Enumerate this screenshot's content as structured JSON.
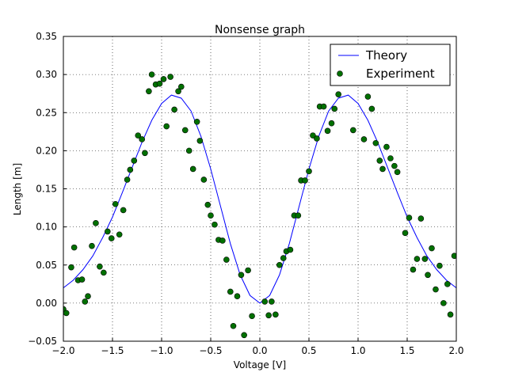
{
  "chart_data": {
    "type": "line_scatter",
    "title": "Nonsense graph",
    "x_label": "Voltage [V]",
    "y_label": "Length [m]",
    "xlim": [
      -2.0,
      2.0
    ],
    "ylim": [
      -0.05,
      0.35
    ],
    "xticks": [
      {
        "value": -2.0,
        "label": "−2.0"
      },
      {
        "value": -1.5,
        "label": "−1.5"
      },
      {
        "value": -1.0,
        "label": "−1.0"
      },
      {
        "value": -0.5,
        "label": "−0.5"
      },
      {
        "value": 0.0,
        "label": "0.0"
      },
      {
        "value": 0.5,
        "label": "0.5"
      },
      {
        "value": 1.0,
        "label": "1.0"
      },
      {
        "value": 1.5,
        "label": "1.5"
      },
      {
        "value": 2.0,
        "label": "2.0"
      }
    ],
    "yticks": [
      {
        "value": -0.05,
        "label": "−0.05"
      },
      {
        "value": 0.0,
        "label": "0.00"
      },
      {
        "value": 0.05,
        "label": "0.05"
      },
      {
        "value": 0.1,
        "label": "0.10"
      },
      {
        "value": 0.15,
        "label": "0.15"
      },
      {
        "value": 0.2,
        "label": "0.20"
      },
      {
        "value": 0.25,
        "label": "0.25"
      },
      {
        "value": 0.3,
        "label": "0.30"
      },
      {
        "value": 0.35,
        "label": "0.35"
      }
    ],
    "grid": true,
    "legend": "upper right",
    "series": [
      {
        "name": "Theory",
        "kind": "line",
        "color": "#0000ff",
        "x": [
          -2.0,
          -1.9,
          -1.8,
          -1.7,
          -1.6,
          -1.5,
          -1.4,
          -1.3,
          -1.2,
          -1.1,
          -1.0,
          -0.9,
          -0.8,
          -0.7,
          -0.6,
          -0.5,
          -0.4,
          -0.3,
          -0.2,
          -0.1,
          0.0,
          0.1,
          0.2,
          0.3,
          0.4,
          0.5,
          0.6,
          0.7,
          0.8,
          0.9,
          1.0,
          1.1,
          1.2,
          1.3,
          1.4,
          1.5,
          1.6,
          1.7,
          1.8,
          1.9,
          2.0
        ],
        "values": [
          0.02,
          0.03,
          0.044,
          0.062,
          0.086,
          0.113,
          0.145,
          0.178,
          0.211,
          0.24,
          0.262,
          0.273,
          0.269,
          0.252,
          0.219,
          0.176,
          0.127,
          0.078,
          0.037,
          0.01,
          0.0,
          0.01,
          0.037,
          0.078,
          0.127,
          0.176,
          0.219,
          0.252,
          0.269,
          0.273,
          0.262,
          0.24,
          0.211,
          0.178,
          0.145,
          0.113,
          0.086,
          0.062,
          0.044,
          0.03,
          0.02
        ]
      },
      {
        "name": "Experiment",
        "kind": "scatter",
        "color": "#007000",
        "x": [
          -2.0,
          -1.97,
          -1.92,
          -1.89,
          -1.85,
          -1.81,
          -1.78,
          -1.75,
          -1.71,
          -1.67,
          -1.63,
          -1.59,
          -1.55,
          -1.51,
          -1.47,
          -1.43,
          -1.39,
          -1.35,
          -1.32,
          -1.28,
          -1.24,
          -1.2,
          -1.17,
          -1.13,
          -1.1,
          -1.06,
          -1.02,
          -0.98,
          -0.95,
          -0.91,
          -0.87,
          -0.83,
          -0.8,
          -0.76,
          -0.72,
          -0.68,
          -0.64,
          -0.61,
          -0.57,
          -0.53,
          -0.5,
          -0.46,
          -0.42,
          -0.38,
          -0.34,
          -0.3,
          -0.27,
          -0.23,
          -0.19,
          -0.16,
          -0.12,
          -0.08,
          0.05,
          0.09,
          0.12,
          0.16,
          0.2,
          0.24,
          0.27,
          0.31,
          0.35,
          0.39,
          0.42,
          0.46,
          0.5,
          0.54,
          0.58,
          0.61,
          0.65,
          0.69,
          0.73,
          0.76,
          0.8,
          0.95,
          1.06,
          1.1,
          1.14,
          1.18,
          1.22,
          1.25,
          1.29,
          1.33,
          1.37,
          1.4,
          1.48,
          1.52,
          1.56,
          1.6,
          1.64,
          1.68,
          1.71,
          1.75,
          1.79,
          1.83,
          1.87,
          1.91,
          1.94,
          1.98
        ],
        "values": [
          -0.008,
          -0.013,
          0.047,
          0.073,
          0.03,
          0.031,
          0.002,
          0.009,
          0.075,
          0.105,
          0.048,
          0.04,
          0.094,
          0.085,
          0.13,
          0.09,
          0.122,
          0.162,
          0.175,
          0.187,
          0.22,
          0.215,
          0.197,
          0.278,
          0.3,
          0.287,
          0.288,
          0.294,
          0.232,
          0.297,
          0.254,
          0.278,
          0.284,
          0.227,
          0.2,
          0.176,
          0.238,
          0.213,
          0.162,
          0.129,
          0.115,
          0.103,
          0.083,
          0.082,
          0.057,
          0.015,
          -0.03,
          0.009,
          0.037,
          -0.042,
          0.043,
          -0.017,
          0.002,
          -0.016,
          0.002,
          -0.015,
          0.05,
          0.059,
          0.068,
          0.07,
          0.115,
          0.115,
          0.161,
          0.161,
          0.173,
          0.22,
          0.216,
          0.258,
          0.258,
          0.226,
          0.236,
          0.255,
          0.274,
          0.227,
          0.215,
          0.271,
          0.255,
          0.21,
          0.187,
          0.176,
          0.205,
          0.19,
          0.18,
          0.172,
          0.092,
          0.112,
          0.044,
          0.058,
          0.111,
          0.058,
          0.037,
          0.072,
          0.018,
          0.049,
          0.0,
          0.025,
          -0.015,
          0.062
        ]
      }
    ]
  }
}
